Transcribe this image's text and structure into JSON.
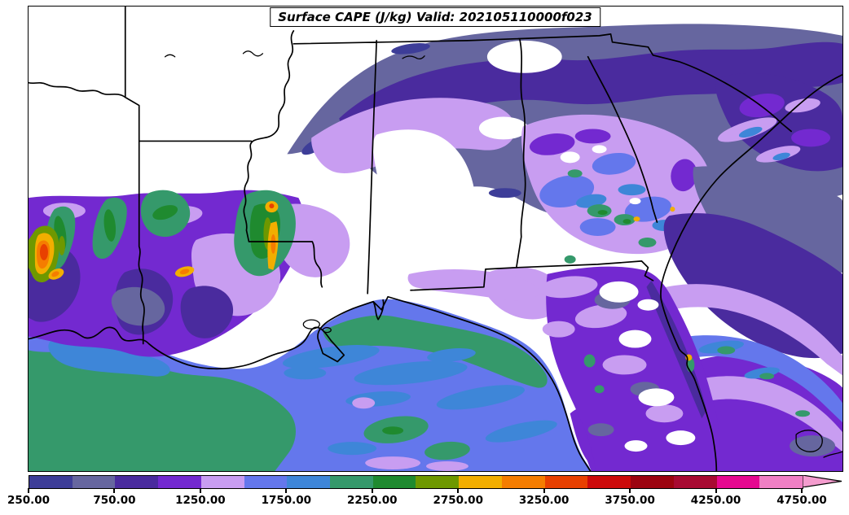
{
  "figure": {
    "background": "#ffffff",
    "frame_color": "#000000"
  },
  "title": {
    "text": "Surface CAPE (J/kg) Valid: 202105110000f023"
  },
  "palette": {
    "below250": "#ffffff",
    "c250": "#3d3d98",
    "c500": "#66669f",
    "c750": "#4a2b9e",
    "c1000": "#7329d0",
    "c1250": "#c89df1",
    "c1500": "#6477ec",
    "c1750": "#3e86d8",
    "c2000": "#35996b",
    "c2250": "#1f8a2f",
    "c2500": "#6e9800",
    "c2750": "#f2ae00",
    "c3000": "#f57d00",
    "c3250": "#e84000",
    "c3500": "#cc0a0a",
    "c3750": "#9c0410",
    "c4000": "#a80a32",
    "c4250": "#e60890",
    "c4500": "#f07fc4",
    "extend": "#f49cce"
  },
  "colorbar": {
    "units": "J/kg",
    "levels": [
      250,
      500,
      750,
      1000,
      1250,
      1500,
      1750,
      2000,
      2250,
      2500,
      2750,
      3000,
      3250,
      3500,
      3750,
      4000,
      4250,
      4500,
      4750
    ],
    "tick_labels": [
      "250.00",
      "750.00",
      "1250.00",
      "1750.00",
      "2250.00",
      "2750.00",
      "3250.00",
      "3750.00",
      "4250.00",
      "4750.00"
    ],
    "extend_label": ">4750"
  }
}
